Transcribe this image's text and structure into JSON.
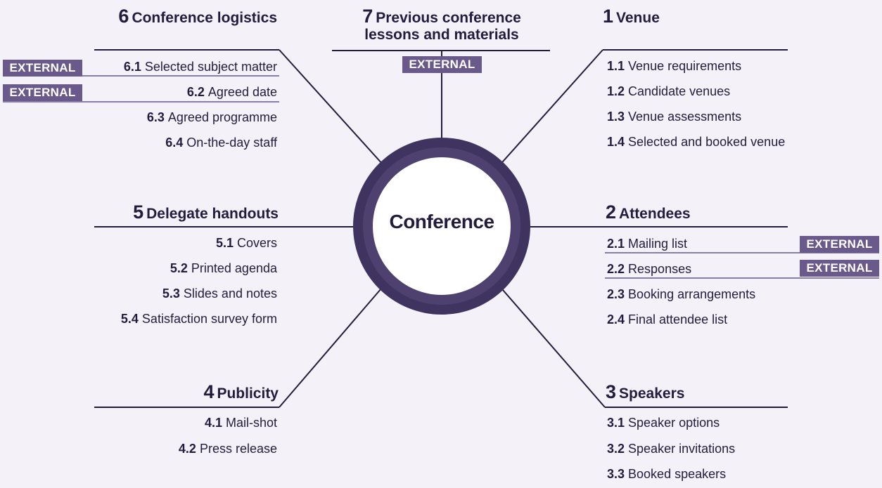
{
  "hub": {
    "label": "Conference"
  },
  "external_label": "EXTERNAL",
  "colors": {
    "background": "#f4f1f8",
    "line": "#241c3e",
    "ring": "#3f3360",
    "badge": "#6a5a8c",
    "badge_line": "#8a7daa"
  },
  "branches": [
    {
      "number": "1",
      "title": "Venue",
      "items": [
        {
          "number": "1.1",
          "label": "Venue requirements"
        },
        {
          "number": "1.2",
          "label": "Candidate venues"
        },
        {
          "number": "1.3",
          "label": "Venue assessments"
        },
        {
          "number": "1.4",
          "label": "Selected and booked venue"
        }
      ]
    },
    {
      "number": "2",
      "title": "Attendees",
      "items": [
        {
          "number": "2.1",
          "label": "Mailing list",
          "external": true
        },
        {
          "number": "2.2",
          "label": "Responses",
          "external": true
        },
        {
          "number": "2.3",
          "label": "Booking arrangements"
        },
        {
          "number": "2.4",
          "label": "Final attendee list"
        }
      ]
    },
    {
      "number": "3",
      "title": "Speakers",
      "items": [
        {
          "number": "3.1",
          "label": "Speaker options"
        },
        {
          "number": "3.2",
          "label": "Speaker invitations"
        },
        {
          "number": "3.3",
          "label": "Booked speakers"
        }
      ]
    },
    {
      "number": "4",
      "title": "Publicity",
      "items": [
        {
          "number": "4.1",
          "label": "Mail-shot"
        },
        {
          "number": "4.2",
          "label": "Press release"
        }
      ]
    },
    {
      "number": "5",
      "title": "Delegate handouts",
      "items": [
        {
          "number": "5.1",
          "label": "Covers"
        },
        {
          "number": "5.2",
          "label": "Printed agenda"
        },
        {
          "number": "5.3",
          "label": "Slides and notes"
        },
        {
          "number": "5.4",
          "label": "Satisfaction survey form"
        }
      ]
    },
    {
      "number": "6",
      "title": "Conference logistics",
      "items": [
        {
          "number": "6.1",
          "label": "Selected subject matter",
          "external": true
        },
        {
          "number": "6.2",
          "label": "Agreed date",
          "external": true
        },
        {
          "number": "6.3",
          "label": "Agreed programme"
        },
        {
          "number": "6.4",
          "label": "On-the-day staff"
        }
      ]
    },
    {
      "number": "7",
      "title_line1": "Previous conference",
      "title_line2": "lessons and materials",
      "external": true
    }
  ]
}
